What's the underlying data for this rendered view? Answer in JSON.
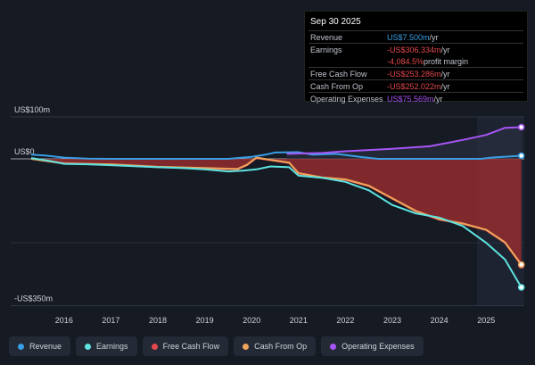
{
  "tooltip": {
    "date": "Sep 30 2025",
    "rows": [
      {
        "label": "Revenue",
        "value": "US$7.500m",
        "suffix": " /yr",
        "color": "#3a9ee4"
      },
      {
        "label": "Earnings",
        "value": "-US$306.334m",
        "suffix": " /yr",
        "color": "#e5484d"
      },
      {
        "label": "",
        "value": "-4,084.5%",
        "suffix": " profit margin",
        "color": "#e5484d"
      },
      {
        "label": "Free Cash Flow",
        "value": "-US$253.286m",
        "suffix": " /yr",
        "color": "#e5484d"
      },
      {
        "label": "Cash From Op",
        "value": "-US$252.022m",
        "suffix": " /yr",
        "color": "#e5484d"
      },
      {
        "label": "Operating Expenses",
        "value": "US$75.569m",
        "suffix": " /yr",
        "color": "#a855f7"
      }
    ]
  },
  "chart_data": {
    "type": "line",
    "ylim": [
      -350,
      100
    ],
    "yticks": [
      {
        "v": 100,
        "label": "US$100m"
      },
      {
        "v": 0,
        "label": "US$0"
      },
      {
        "v": -350,
        "label": "-US$350m"
      }
    ],
    "xticks": [
      2016,
      2017,
      2018,
      2019,
      2020,
      2021,
      2022,
      2023,
      2024,
      2025
    ],
    "xlim": [
      2015.0,
      2025.75
    ],
    "series": [
      {
        "name": "Revenue",
        "color": "#3a9ee4",
        "points": [
          [
            2015.3,
            10
          ],
          [
            2015.6,
            8
          ],
          [
            2016,
            3
          ],
          [
            2016.5,
            0.5
          ],
          [
            2017,
            0
          ],
          [
            2019.5,
            0
          ],
          [
            2020,
            5
          ],
          [
            2020.3,
            10
          ],
          [
            2020.5,
            15
          ],
          [
            2021,
            16
          ],
          [
            2021.3,
            10
          ],
          [
            2021.8,
            12
          ],
          [
            2022.3,
            5
          ],
          [
            2022.7,
            0
          ],
          [
            2024.9,
            0
          ],
          [
            2025.1,
            3
          ],
          [
            2025.75,
            7.5
          ]
        ]
      },
      {
        "name": "Earnings",
        "color": "#5ee3e0",
        "points": [
          [
            2015.3,
            2
          ],
          [
            2015.7,
            -5
          ],
          [
            2016,
            -12
          ],
          [
            2016.5,
            -13
          ],
          [
            2017,
            -15
          ],
          [
            2018,
            -20
          ],
          [
            2018.5,
            -22
          ],
          [
            2019,
            -25
          ],
          [
            2019.5,
            -30
          ],
          [
            2019.8,
            -28
          ],
          [
            2020.1,
            -25
          ],
          [
            2020.4,
            -18
          ],
          [
            2020.8,
            -20
          ],
          [
            2021,
            -40
          ],
          [
            2021.5,
            -45
          ],
          [
            2022,
            -55
          ],
          [
            2022.5,
            -75
          ],
          [
            2023,
            -110
          ],
          [
            2023.5,
            -130
          ],
          [
            2024,
            -140
          ],
          [
            2024.5,
            -160
          ],
          [
            2025,
            -200
          ],
          [
            2025.4,
            -240
          ],
          [
            2025.75,
            -306.3
          ]
        ]
      },
      {
        "name": "Free Cash Flow",
        "color": "#e5484d",
        "points": [
          [
            2015.3,
            0
          ],
          [
            2016,
            -10
          ],
          [
            2017,
            -14
          ],
          [
            2018,
            -20
          ],
          [
            2019,
            -23
          ],
          [
            2019.7,
            -25
          ],
          [
            2019.9,
            -15
          ],
          [
            2020.1,
            2
          ],
          [
            2020.5,
            -5
          ],
          [
            2020.8,
            -10
          ],
          [
            2021,
            -35
          ],
          [
            2021.5,
            -45
          ],
          [
            2022,
            -50
          ],
          [
            2022.5,
            -65
          ],
          [
            2023,
            -95
          ],
          [
            2023.5,
            -125
          ],
          [
            2024,
            -145
          ],
          [
            2024.5,
            -155
          ],
          [
            2025,
            -170
          ],
          [
            2025.4,
            -200
          ],
          [
            2025.75,
            -253.3
          ]
        ]
      },
      {
        "name": "Cash From Op",
        "color": "#f0a35a",
        "points": [
          [
            2015.3,
            0
          ],
          [
            2016,
            -11
          ],
          [
            2017,
            -13
          ],
          [
            2018,
            -19
          ],
          [
            2019,
            -22
          ],
          [
            2019.7,
            -24
          ],
          [
            2019.9,
            -14
          ],
          [
            2020.1,
            3
          ],
          [
            2020.5,
            -4
          ],
          [
            2020.8,
            -9
          ],
          [
            2021,
            -34
          ],
          [
            2021.5,
            -44
          ],
          [
            2022,
            -49
          ],
          [
            2022.5,
            -64
          ],
          [
            2023,
            -94
          ],
          [
            2023.5,
            -124
          ],
          [
            2024,
            -144
          ],
          [
            2024.5,
            -154
          ],
          [
            2025,
            -169
          ],
          [
            2025.4,
            -199
          ],
          [
            2025.75,
            -252
          ]
        ]
      },
      {
        "name": "Operating Expenses",
        "color": "#a855f7",
        "points": [
          [
            2020.75,
            12
          ],
          [
            2021.5,
            14
          ],
          [
            2022,
            18
          ],
          [
            2023,
            24
          ],
          [
            2023.8,
            30
          ],
          [
            2024.5,
            45
          ],
          [
            2025,
            57
          ],
          [
            2025.4,
            74
          ],
          [
            2025.75,
            75.6
          ]
        ]
      }
    ]
  }
}
